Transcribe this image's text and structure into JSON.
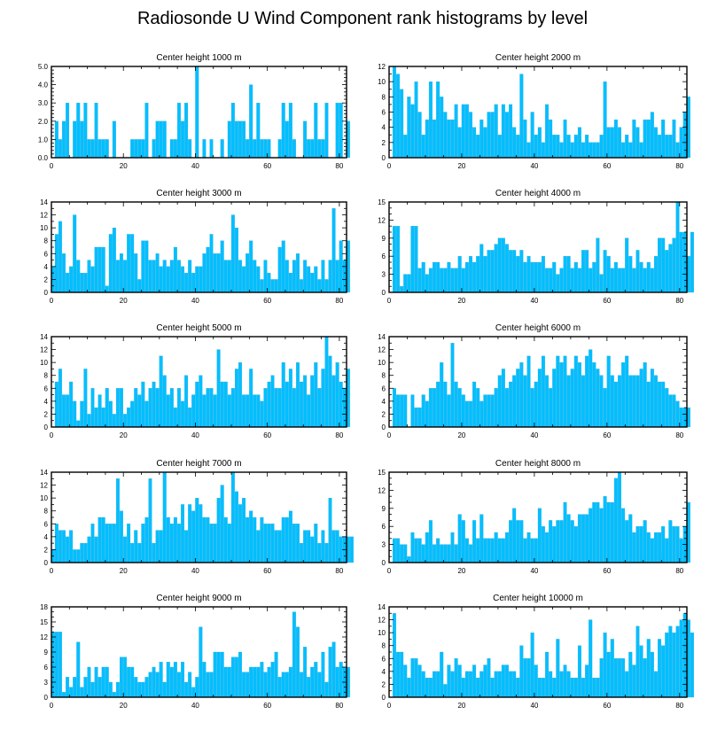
{
  "title": "Radiosonde U Wind Component rank histograms by level",
  "bar_color": "#00BFFF",
  "chart_data": [
    {
      "type": "bar",
      "title": "Center height 1000 m",
      "xlim": [
        0,
        82
      ],
      "ylim": [
        0,
        5
      ],
      "xticks": [
        "0",
        "20",
        "40",
        "60",
        "80"
      ],
      "yticks": [
        "0.0",
        "1.0",
        "2.0",
        "3.0",
        "4.0",
        "5.0"
      ],
      "values": [
        0,
        2,
        1,
        2,
        3,
        0,
        2,
        3,
        2,
        3,
        1,
        1,
        3,
        1,
        1,
        1,
        0,
        2,
        0,
        0,
        0,
        0,
        1,
        1,
        1,
        1,
        3,
        0,
        1,
        2,
        2,
        2,
        0,
        1,
        1,
        3,
        2,
        3,
        1,
        0,
        5,
        0,
        1,
        0,
        1,
        0,
        0,
        1,
        0,
        2,
        3,
        2,
        2,
        2,
        1,
        4,
        1,
        3,
        1,
        1,
        1,
        0,
        0,
        1,
        3,
        2,
        3,
        1,
        0,
        0,
        2,
        1,
        1,
        3,
        1,
        1,
        3,
        0,
        0,
        3,
        3,
        0,
        2
      ]
    },
    {
      "type": "bar",
      "title": "Center height 2000 m",
      "xlim": [
        0,
        82
      ],
      "ylim": [
        0,
        12
      ],
      "xticks": [
        "0",
        "20",
        "40",
        "60",
        "80"
      ],
      "yticks": [
        "0",
        "2",
        "4",
        "6",
        "8",
        "10",
        "12"
      ],
      "values": [
        0,
        12,
        11,
        9,
        3,
        8,
        7,
        10,
        6,
        3,
        5,
        10,
        5,
        10,
        8,
        6,
        5,
        5,
        7,
        4,
        7,
        7,
        6,
        4,
        3,
        5,
        4,
        6,
        6,
        7,
        3,
        7,
        6,
        7,
        4,
        3,
        11,
        5,
        2,
        6,
        3,
        4,
        2,
        7,
        5,
        3,
        3,
        2,
        5,
        3,
        2,
        3,
        4,
        2,
        3,
        2,
        2,
        2,
        3,
        10,
        4,
        4,
        5,
        4,
        2,
        3,
        2,
        5,
        4,
        2,
        5,
        5,
        6,
        4,
        3,
        5,
        3,
        3,
        5,
        2,
        4,
        6,
        8
      ]
    },
    {
      "type": "bar",
      "title": "Center height 3000 m",
      "xlim": [
        0,
        82
      ],
      "ylim": [
        0,
        14
      ],
      "xticks": [
        "0",
        "20",
        "40",
        "60",
        "80"
      ],
      "yticks": [
        "0",
        "2",
        "4",
        "6",
        "8",
        "10",
        "12",
        "14"
      ],
      "values": [
        4,
        9,
        11,
        6,
        3,
        4,
        12,
        5,
        3,
        3,
        5,
        4,
        7,
        7,
        7,
        1,
        9,
        10,
        5,
        6,
        5,
        9,
        9,
        6,
        2,
        8,
        8,
        5,
        5,
        6,
        4,
        5,
        4,
        5,
        7,
        5,
        4,
        3,
        5,
        3,
        4,
        4,
        6,
        7,
        9,
        6,
        6,
        8,
        5,
        5,
        12,
        10,
        5,
        4,
        6,
        8,
        5,
        4,
        2,
        5,
        3,
        2,
        2,
        7,
        8,
        5,
        3,
        5,
        6,
        2,
        5,
        4,
        3,
        4,
        2,
        5,
        2,
        5,
        13,
        5,
        8,
        5,
        8
      ]
    },
    {
      "type": "bar",
      "title": "Center height 4000 m",
      "xlim": [
        0,
        82
      ],
      "ylim": [
        0,
        15
      ],
      "xticks": [
        "0",
        "20",
        "40",
        "60",
        "80"
      ],
      "yticks": [
        "0",
        "3",
        "6",
        "9",
        "12",
        "15"
      ],
      "values": [
        0,
        11,
        11,
        1,
        3,
        3,
        11,
        11,
        4,
        5,
        3,
        4,
        5,
        5,
        4,
        4,
        5,
        4,
        4,
        6,
        4,
        5,
        6,
        5,
        6,
        8,
        6,
        7,
        7,
        8,
        9,
        9,
        8,
        7,
        7,
        6,
        7,
        5,
        6,
        5,
        5,
        5,
        6,
        4,
        4,
        5,
        3,
        4,
        6,
        6,
        4,
        5,
        4,
        7,
        7,
        4,
        5,
        9,
        3,
        7,
        6,
        4,
        5,
        4,
        4,
        9,
        6,
        4,
        7,
        5,
        4,
        5,
        4,
        6,
        9,
        9,
        7,
        8,
        9,
        15,
        10,
        10,
        6,
        10
      ]
    },
    {
      "type": "bar",
      "title": "Center height 5000 m",
      "xlim": [
        0,
        82
      ],
      "ylim": [
        0,
        14
      ],
      "xticks": [
        "0",
        "20",
        "40",
        "60",
        "80"
      ],
      "yticks": [
        "0",
        "2",
        "4",
        "6",
        "8",
        "10",
        "12",
        "14"
      ],
      "values": [
        0,
        7,
        9,
        5,
        5,
        7,
        4,
        1,
        4,
        9,
        2,
        6,
        3,
        5,
        3,
        6,
        4,
        2,
        6,
        6,
        2,
        3,
        4,
        6,
        5,
        7,
        4,
        6,
        7,
        6,
        11,
        8,
        5,
        6,
        3,
        6,
        4,
        8,
        3,
        5,
        7,
        8,
        5,
        6,
        6,
        5,
        12,
        7,
        7,
        5,
        6,
        9,
        10,
        5,
        5,
        9,
        5,
        5,
        4,
        6,
        7,
        8,
        6,
        6,
        10,
        7,
        9,
        6,
        10,
        7,
        8,
        5,
        8,
        10,
        6,
        9,
        14,
        11,
        8,
        10,
        7,
        6,
        9
      ]
    },
    {
      "type": "bar",
      "title": "Center height 6000 m",
      "xlim": [
        0,
        82
      ],
      "ylim": [
        0,
        14
      ],
      "xticks": [
        "0",
        "20",
        "40",
        "60",
        "80"
      ],
      "yticks": [
        "0",
        "2",
        "4",
        "6",
        "8",
        "10",
        "12",
        "14"
      ],
      "values": [
        0,
        6,
        5,
        5,
        5,
        0,
        5,
        3,
        3,
        5,
        4,
        6,
        6,
        7,
        10,
        7,
        5,
        13,
        7,
        6,
        5,
        4,
        4,
        7,
        6,
        4,
        5,
        5,
        5,
        6,
        8,
        9,
        6,
        7,
        8,
        9,
        10,
        8,
        11,
        6,
        7,
        9,
        11,
        8,
        6,
        9,
        11,
        10,
        11,
        8,
        9,
        11,
        10,
        8,
        11,
        12,
        10,
        9,
        8,
        6,
        11,
        8,
        7,
        8,
        10,
        11,
        8,
        8,
        8,
        9,
        10,
        7,
        9,
        8,
        7,
        7,
        6,
        5,
        5,
        4,
        3,
        3,
        3
      ]
    },
    {
      "type": "bar",
      "title": "Center height 7000 m",
      "xlim": [
        0,
        82
      ],
      "ylim": [
        0,
        14
      ],
      "xticks": [
        "0",
        "20",
        "40",
        "60",
        "80"
      ],
      "yticks": [
        "0",
        "2",
        "4",
        "6",
        "8",
        "10",
        "12",
        "14"
      ],
      "values": [
        2,
        6,
        5,
        5,
        4,
        5,
        2,
        2,
        3,
        3,
        4,
        6,
        4,
        7,
        7,
        6,
        6,
        6,
        13,
        8,
        4,
        6,
        3,
        5,
        3,
        6,
        7,
        13,
        3,
        5,
        5,
        14,
        7,
        6,
        7,
        6,
        9,
        5,
        9,
        8,
        10,
        9,
        7,
        7,
        6,
        6,
        10,
        12,
        7,
        6,
        14,
        11,
        9,
        10,
        7,
        8,
        7,
        5,
        7,
        6,
        6,
        6,
        5,
        5,
        7,
        7,
        8,
        6,
        6,
        3,
        5,
        5,
        4,
        6,
        3,
        5,
        3,
        10,
        5,
        5,
        4,
        4,
        4,
        4
      ]
    },
    {
      "type": "bar",
      "title": "Center height 8000 m",
      "xlim": [
        0,
        82
      ],
      "ylim": [
        0,
        15
      ],
      "xticks": [
        "0",
        "20",
        "40",
        "60",
        "80"
      ],
      "yticks": [
        "0",
        "3",
        "6",
        "9",
        "12",
        "15"
      ],
      "values": [
        0,
        4,
        4,
        3,
        3,
        1,
        5,
        4,
        4,
        3,
        5,
        7,
        3,
        4,
        3,
        3,
        3,
        5,
        3,
        8,
        7,
        4,
        3,
        7,
        4,
        8,
        4,
        4,
        4,
        5,
        4,
        4,
        5,
        7,
        9,
        7,
        7,
        4,
        5,
        4,
        4,
        9,
        6,
        5,
        7,
        6,
        7,
        7,
        10,
        8,
        7,
        6,
        8,
        8,
        8,
        9,
        10,
        10,
        9,
        11,
        10,
        10,
        14,
        15,
        9,
        7,
        8,
        5,
        6,
        6,
        7,
        5,
        4,
        5,
        5,
        6,
        4,
        7,
        6,
        6,
        4,
        6,
        10
      ]
    },
    {
      "type": "bar",
      "title": "Center height 9000 m",
      "xlim": [
        0,
        82
      ],
      "ylim": [
        0,
        18
      ],
      "xticks": [
        "0",
        "20",
        "40",
        "60",
        "80"
      ],
      "yticks": [
        "0",
        "3",
        "6",
        "9",
        "12",
        "15",
        "18"
      ],
      "values": [
        13,
        13,
        13,
        1,
        4,
        2,
        4,
        11,
        2,
        4,
        6,
        3,
        6,
        4,
        6,
        6,
        3,
        1,
        3,
        8,
        8,
        6,
        6,
        4,
        3,
        3,
        4,
        5,
        6,
        5,
        7,
        3,
        7,
        6,
        7,
        5,
        7,
        3,
        5,
        2,
        4,
        14,
        7,
        5,
        5,
        9,
        9,
        9,
        6,
        6,
        8,
        8,
        9,
        5,
        5,
        6,
        6,
        6,
        7,
        5,
        6,
        7,
        9,
        4,
        5,
        5,
        6,
        17,
        14,
        5,
        10,
        4,
        6,
        7,
        5,
        9,
        3,
        10,
        11,
        6,
        7,
        6,
        6
      ]
    },
    {
      "type": "bar",
      "title": "Center height 10000 m",
      "xlim": [
        0,
        82
      ],
      "ylim": [
        0,
        14
      ],
      "xticks": [
        "0",
        "20",
        "40",
        "60",
        "80"
      ],
      "yticks": [
        "0",
        "2",
        "4",
        "6",
        "8",
        "10",
        "12",
        "14"
      ],
      "values": [
        0,
        13,
        7,
        7,
        5,
        3,
        6,
        6,
        5,
        4,
        3,
        3,
        4,
        4,
        7,
        2,
        5,
        4,
        6,
        5,
        3,
        4,
        4,
        5,
        3,
        4,
        5,
        6,
        3,
        4,
        4,
        5,
        5,
        4,
        4,
        3,
        8,
        6,
        6,
        10,
        5,
        3,
        3,
        7,
        4,
        3,
        9,
        4,
        5,
        4,
        3,
        3,
        8,
        3,
        5,
        12,
        3,
        3,
        6,
        10,
        7,
        9,
        6,
        6,
        6,
        4,
        7,
        5,
        11,
        8,
        6,
        9,
        7,
        4,
        9,
        8,
        10,
        11,
        10,
        11,
        12,
        13,
        12,
        10
      ]
    }
  ]
}
